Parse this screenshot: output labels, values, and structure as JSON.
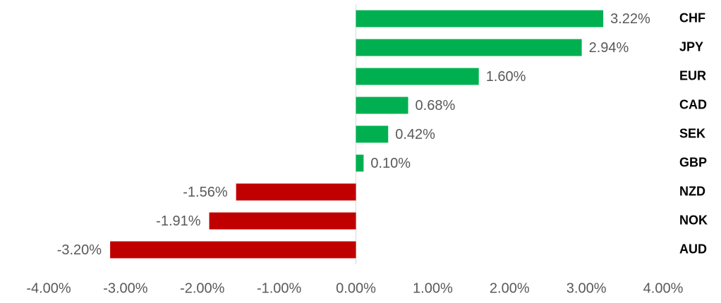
{
  "chart_data": {
    "type": "bar",
    "orientation": "horizontal",
    "categories": [
      "CHF",
      "JPY",
      "EUR",
      "CAD",
      "SEK",
      "GBP",
      "NZD",
      "NOK",
      "AUD"
    ],
    "values": [
      3.22,
      2.94,
      1.6,
      0.68,
      0.42,
      0.1,
      -1.56,
      -1.91,
      -3.2
    ],
    "value_labels": [
      "3.22%",
      "2.94%",
      "1.60%",
      "0.68%",
      "0.42%",
      "0.10%",
      "-1.56%",
      "-1.91%",
      "-3.20%"
    ],
    "positive_color": "#00b050",
    "negative_color": "#c00000",
    "xlim": [
      -4,
      4
    ],
    "xticks": [
      {
        "value": -4,
        "label": "-4.00%"
      },
      {
        "value": -3,
        "label": "-3.00%"
      },
      {
        "value": -2,
        "label": "-2.00%"
      },
      {
        "value": -1,
        "label": "-1.00%"
      },
      {
        "value": 0,
        "label": "0.00%"
      },
      {
        "value": 1,
        "label": "1.00%"
      },
      {
        "value": 2,
        "label": "2.00%"
      },
      {
        "value": 3,
        "label": "3.00%"
      },
      {
        "value": 4,
        "label": "4.00%"
      }
    ],
    "grid": false
  }
}
